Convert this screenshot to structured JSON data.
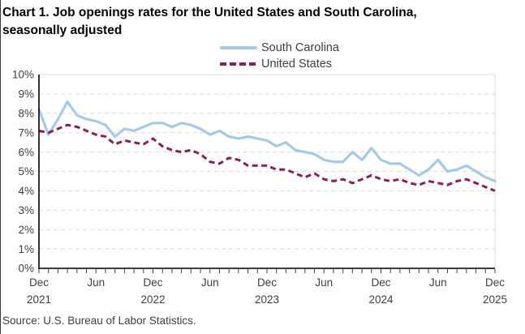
{
  "title": {
    "line1": "Chart 1. Job openings rates for the United States and South Carolina,",
    "line2": "seasonally adjusted"
  },
  "legend": {
    "items": [
      {
        "label": "South Carolina",
        "color": "#A4C9EC",
        "style": "solid"
      },
      {
        "label": "United States",
        "color": "#8E1D5B",
        "style": "dashed"
      }
    ]
  },
  "source": "Source: U.S. Bureau of Labor Statistics.",
  "colors": {
    "south_carolina": "#A4C9EC",
    "united_states": "#8E1D5B",
    "gridline": "#D9D9D9",
    "axis": "#000000",
    "tick": "#404040",
    "label_text": "#3f3f3f",
    "title_text": "#000000"
  },
  "chart_data": {
    "type": "line",
    "title": "Chart 1. Job openings rates for the United States and South Carolina, seasonally adjusted",
    "frequency": "monthly",
    "x_start": "Dec 2021",
    "x_end": "Dec 2025",
    "grid": "horizontal-dashed",
    "legend_position": "top-center",
    "x": [
      "Dec 2021",
      "Jan 2022",
      "Feb 2022",
      "Mar 2022",
      "Apr 2022",
      "May 2022",
      "Jun 2022",
      "Jul 2022",
      "Aug 2022",
      "Sep 2022",
      "Oct 2022",
      "Nov 2022",
      "Dec 2022",
      "Jan 2023",
      "Feb 2023",
      "Mar 2023",
      "Apr 2023",
      "May 2023",
      "Jun 2023",
      "Jul 2023",
      "Aug 2023",
      "Sep 2023",
      "Oct 2023",
      "Nov 2023",
      "Dec 2023",
      "Jan 2024",
      "Feb 2024",
      "Mar 2024",
      "Apr 2024",
      "May 2024",
      "Jun 2024",
      "Jul 2024",
      "Aug 2024",
      "Sep 2024",
      "Oct 2024",
      "Nov 2024",
      "Dec 2024",
      "Jan 2025",
      "Feb 2025",
      "Mar 2025",
      "Apr 2025",
      "May 2025",
      "Jun 2025",
      "Jul 2025",
      "Aug 2025",
      "Sep 2025",
      "Oct 2025",
      "Nov 2025",
      "Dec 2025"
    ],
    "x_tick_labels": [
      {
        "index": 0,
        "month": "Dec",
        "year": "2021"
      },
      {
        "index": 6,
        "month": "Jun"
      },
      {
        "index": 12,
        "month": "Dec",
        "year": "2022"
      },
      {
        "index": 18,
        "month": "Jun"
      },
      {
        "index": 24,
        "month": "Dec",
        "year": "2023"
      },
      {
        "index": 30,
        "month": "Jun"
      },
      {
        "index": 36,
        "month": "Dec",
        "year": "2024"
      },
      {
        "index": 42,
        "month": "Jun"
      },
      {
        "index": 48,
        "month": "Dec",
        "year": "2025"
      }
    ],
    "y_axis": {
      "min": 0,
      "max": 10,
      "step": 1,
      "suffix": "%",
      "tick_labels": [
        "0%",
        "1%",
        "2%",
        "3%",
        "4%",
        "5%",
        "6%",
        "7%",
        "8%",
        "9%",
        "10%"
      ]
    },
    "series": [
      {
        "name": "South Carolina",
        "color": "#A4C9EC",
        "line_style": "solid",
        "values": [
          8.2,
          6.9,
          7.7,
          8.6,
          7.9,
          7.7,
          7.6,
          7.4,
          6.8,
          7.2,
          7.1,
          7.3,
          7.5,
          7.5,
          7.3,
          7.5,
          7.4,
          7.2,
          6.9,
          7.1,
          6.8,
          6.7,
          6.8,
          6.7,
          6.6,
          6.3,
          6.5,
          6.1,
          6.0,
          5.9,
          5.6,
          5.5,
          5.5,
          6.0,
          5.6,
          6.2,
          5.6,
          5.4,
          5.4,
          5.1,
          4.8,
          5.1,
          5.6,
          5.0,
          5.1,
          5.3,
          5.0,
          4.7,
          4.5
        ]
      },
      {
        "name": "United States",
        "color": "#8E1D5B",
        "line_style": "dashed",
        "values": [
          7.1,
          7.0,
          7.2,
          7.4,
          7.3,
          7.1,
          6.9,
          6.8,
          6.4,
          6.6,
          6.5,
          6.4,
          6.7,
          6.3,
          6.1,
          6.0,
          6.1,
          5.9,
          5.5,
          5.4,
          5.7,
          5.6,
          5.3,
          5.3,
          5.3,
          5.1,
          5.1,
          4.9,
          4.7,
          4.9,
          4.6,
          4.5,
          4.6,
          4.4,
          4.6,
          4.8,
          4.6,
          4.5,
          4.6,
          4.4,
          4.3,
          4.5,
          4.4,
          4.3,
          4.5,
          4.6,
          4.4,
          4.2,
          4.0
        ]
      }
    ]
  }
}
